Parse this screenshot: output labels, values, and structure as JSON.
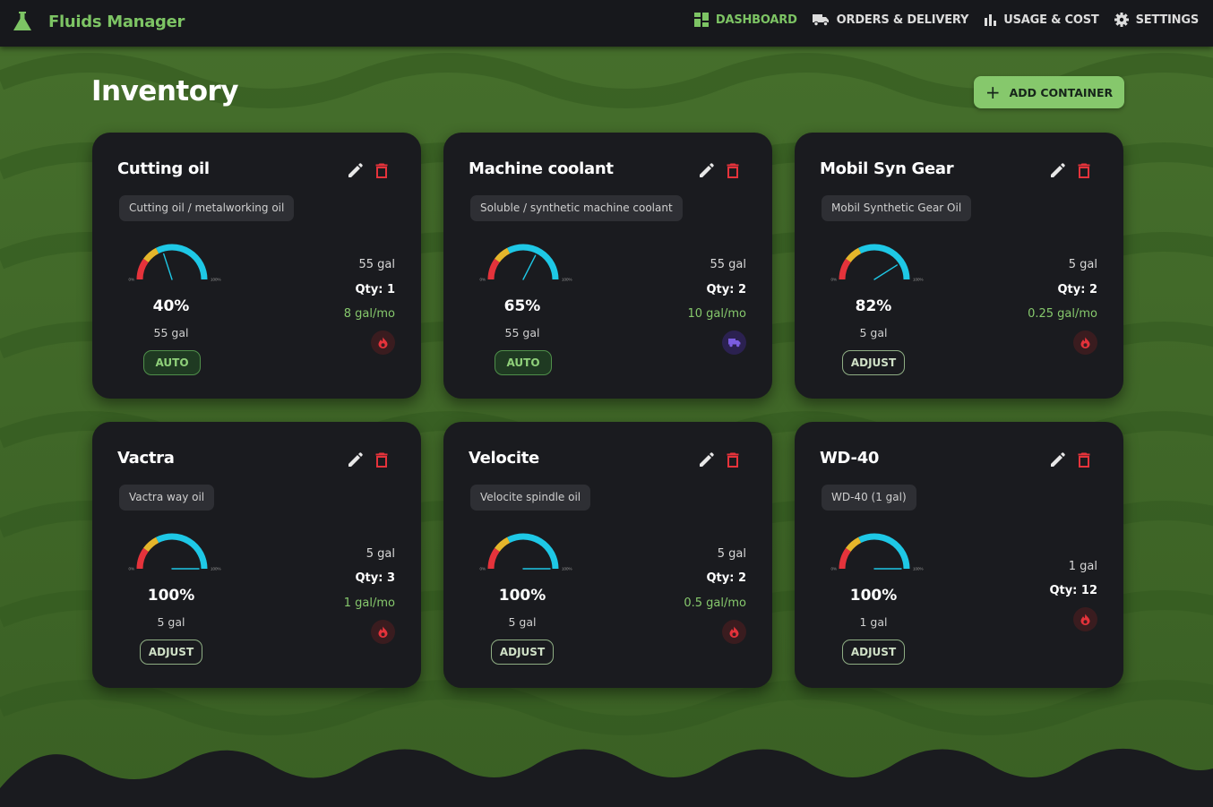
{
  "app": {
    "title": "Fluids Manager"
  },
  "nav": [
    {
      "label": "DASHBOARD",
      "icon": "dashboard-icon",
      "active": true
    },
    {
      "label": "ORDERS & DELIVERY",
      "icon": "truck-icon",
      "active": false
    },
    {
      "label": "USAGE & COST",
      "icon": "bar-chart-icon",
      "active": false
    },
    {
      "label": "SETTINGS",
      "icon": "gear-icon",
      "active": false
    }
  ],
  "page": {
    "title": "Inventory",
    "add_button": "ADD CONTAINER"
  },
  "gauge_labels": {
    "min": "0%",
    "max": "100%"
  },
  "colors": {
    "accent": "#7dc464",
    "gauge_teal": "#1ec8e6",
    "gauge_red": "#e5333b",
    "gauge_yellow": "#e5b62b",
    "delete": "#e5333b"
  },
  "cards": [
    {
      "name": "Cutting oil",
      "type": "Cutting oil / metalworking oil",
      "percent": 40,
      "percent_label": "40%",
      "container": "55 gal",
      "qty": "Qty: 1",
      "rate": "8 gal/mo",
      "mode": "AUTO",
      "status_icon": "fire-icon"
    },
    {
      "name": "Machine coolant",
      "type": "Soluble / synthetic machine coolant",
      "percent": 65,
      "percent_label": "65%",
      "container": "55 gal",
      "qty": "Qty: 2",
      "rate": "10 gal/mo",
      "mode": "AUTO",
      "status_icon": "truck-icon"
    },
    {
      "name": "Mobil Syn Gear",
      "type": "Mobil Synthetic Gear Oil",
      "percent": 82,
      "percent_label": "82%",
      "container": "5 gal",
      "qty": "Qty: 2",
      "rate": "0.25 gal/mo",
      "mode": "ADJUST",
      "status_icon": "fire-icon"
    },
    {
      "name": "Vactra",
      "type": "Vactra way oil",
      "percent": 100,
      "percent_label": "100%",
      "container": "5 gal",
      "qty": "Qty: 3",
      "rate": "1 gal/mo",
      "mode": "ADJUST",
      "status_icon": "fire-icon"
    },
    {
      "name": "Velocite",
      "type": "Velocite spindle oil",
      "percent": 100,
      "percent_label": "100%",
      "container": "5 gal",
      "qty": "Qty: 2",
      "rate": "0.5 gal/mo",
      "mode": "ADJUST",
      "status_icon": "fire-icon"
    },
    {
      "name": "WD-40",
      "type": "WD-40 (1 gal)",
      "percent": 100,
      "percent_label": "100%",
      "container": "1 gal",
      "qty": "Qty: 12",
      "rate": "",
      "mode": "ADJUST",
      "status_icon": "fire-icon"
    }
  ]
}
